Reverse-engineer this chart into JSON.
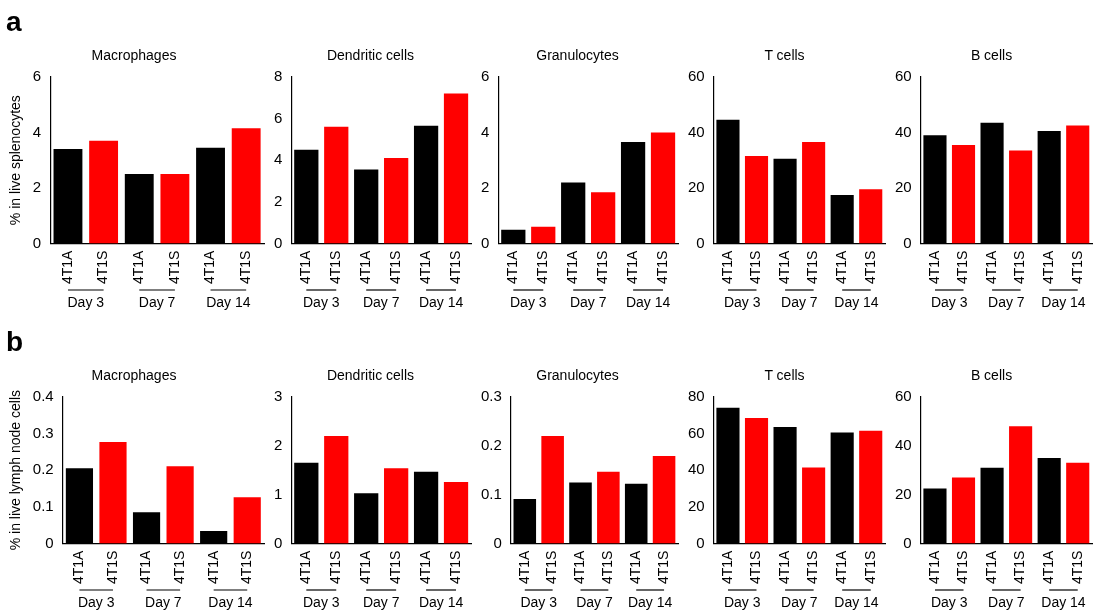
{
  "chart_data": [
    {
      "type": "bar",
      "title": "Macrophages",
      "ylabel": "% in live splenocytes",
      "categories": [
        "4T1A",
        "4T1S",
        "4T1A",
        "4T1S",
        "4T1A",
        "4T1S"
      ],
      "values": [
        3.4,
        3.7,
        2.5,
        2.5,
        3.45,
        4.15
      ],
      "colors": [
        "#000000",
        "#ff0000",
        "#000000",
        "#ff0000",
        "#000000",
        "#ff0000"
      ],
      "ylim": [
        0,
        6
      ],
      "yticks": [
        0,
        2,
        4,
        6
      ],
      "grid": false,
      "legend": false,
      "annotations": [
        "Day 3",
        "Day 7",
        "Day 14",
        "a"
      ]
    },
    {
      "type": "bar",
      "title": "Dendritic cells",
      "categories": [
        "4T1A",
        "4T1S",
        "4T1A",
        "4T1S",
        "4T1A",
        "4T1S"
      ],
      "values": [
        4.5,
        5.6,
        3.55,
        4.1,
        5.65,
        7.2
      ],
      "colors": [
        "#000000",
        "#ff0000",
        "#000000",
        "#ff0000",
        "#000000",
        "#ff0000"
      ],
      "ylim": [
        0,
        8
      ],
      "yticks": [
        0,
        2,
        4,
        6,
        8
      ],
      "grid": false,
      "legend": false,
      "annotations": [
        "Day 3",
        "Day 7",
        "Day 14"
      ]
    },
    {
      "type": "bar",
      "title": "Granulocytes",
      "categories": [
        "4T1A",
        "4T1S",
        "4T1A",
        "4T1S",
        "4T1A",
        "4T1S"
      ],
      "values": [
        0.5,
        0.6,
        2.2,
        1.85,
        3.65,
        4.0
      ],
      "colors": [
        "#000000",
        "#ff0000",
        "#000000",
        "#ff0000",
        "#000000",
        "#ff0000"
      ],
      "ylim": [
        0,
        6
      ],
      "yticks": [
        0,
        2,
        4,
        6
      ],
      "grid": false,
      "legend": false,
      "annotations": [
        "Day 3",
        "Day 7",
        "Day 14"
      ]
    },
    {
      "type": "bar",
      "title": "T cells",
      "categories": [
        "4T1A",
        "4T1S",
        "4T1A",
        "4T1S",
        "4T1A",
        "4T1S"
      ],
      "values": [
        44.5,
        31.5,
        30.5,
        36.5,
        17.5,
        19.5
      ],
      "colors": [
        "#000000",
        "#ff0000",
        "#000000",
        "#ff0000",
        "#000000",
        "#ff0000"
      ],
      "ylim": [
        0,
        60
      ],
      "yticks": [
        0,
        20,
        40,
        60
      ],
      "grid": false,
      "legend": false,
      "annotations": [
        "Day 3",
        "Day 7",
        "Day 14"
      ]
    },
    {
      "type": "bar",
      "title": "B cells",
      "categories": [
        "4T1A",
        "4T1S",
        "4T1A",
        "4T1S",
        "4T1A",
        "4T1S"
      ],
      "values": [
        39,
        35.5,
        43.5,
        33.5,
        40.5,
        42.5
      ],
      "colors": [
        "#000000",
        "#ff0000",
        "#000000",
        "#ff0000",
        "#000000",
        "#ff0000"
      ],
      "ylim": [
        0,
        60
      ],
      "yticks": [
        0,
        20,
        40,
        60
      ],
      "grid": false,
      "legend": false,
      "annotations": [
        "Day 3",
        "Day 7",
        "Day 14"
      ]
    },
    {
      "type": "bar",
      "title": "Macrophages",
      "ylabel": "% in live lymph node cells",
      "categories": [
        "4T1A",
        "4T1S",
        "4T1A",
        "4T1S",
        "4T1A",
        "4T1S"
      ],
      "values": [
        0.205,
        0.277,
        0.085,
        0.211,
        0.034,
        0.126
      ],
      "colors": [
        "#000000",
        "#ff0000",
        "#000000",
        "#ff0000",
        "#000000",
        "#ff0000"
      ],
      "ylim": [
        0,
        0.4
      ],
      "yticks": [
        0,
        0.1,
        0.2,
        0.3,
        0.4
      ],
      "grid": false,
      "legend": false,
      "annotations": [
        "Day 3",
        "Day 7",
        "Day 14",
        "b"
      ]
    },
    {
      "type": "bar",
      "title": "Dendritic cells",
      "categories": [
        "4T1A",
        "4T1S",
        "4T1A",
        "4T1S",
        "4T1A",
        "4T1S"
      ],
      "values": [
        1.65,
        2.2,
        1.03,
        1.54,
        1.47,
        1.26
      ],
      "colors": [
        "#000000",
        "#ff0000",
        "#000000",
        "#ff0000",
        "#000000",
        "#ff0000"
      ],
      "ylim": [
        0,
        3
      ],
      "yticks": [
        0,
        1,
        2,
        3
      ],
      "grid": false,
      "legend": false,
      "annotations": [
        "Day 3",
        "Day 7",
        "Day 14"
      ]
    },
    {
      "type": "bar",
      "title": "Granulocytes",
      "categories": [
        "4T1A",
        "4T1S",
        "4T1A",
        "4T1S",
        "4T1A",
        "4T1S"
      ],
      "values": [
        0.091,
        0.22,
        0.125,
        0.147,
        0.122,
        0.179
      ],
      "colors": [
        "#000000",
        "#ff0000",
        "#000000",
        "#ff0000",
        "#000000",
        "#ff0000"
      ],
      "ylim": [
        0,
        0.3
      ],
      "yticks": [
        0,
        0.1,
        0.2,
        0.3
      ],
      "grid": false,
      "legend": false,
      "annotations": [
        "Day 3",
        "Day 7",
        "Day 14"
      ]
    },
    {
      "type": "bar",
      "title": "T cells",
      "categories": [
        "4T1A",
        "4T1S",
        "4T1A",
        "4T1S",
        "4T1A",
        "4T1S"
      ],
      "values": [
        74,
        68.5,
        63.5,
        41.5,
        60.5,
        61.5
      ],
      "colors": [
        "#000000",
        "#ff0000",
        "#000000",
        "#ff0000",
        "#000000",
        "#ff0000"
      ],
      "ylim": [
        0,
        80
      ],
      "yticks": [
        0,
        20,
        40,
        60,
        80
      ],
      "grid": false,
      "legend": false,
      "annotations": [
        "Day 3",
        "Day 7",
        "Day 14"
      ]
    },
    {
      "type": "bar",
      "title": "B cells",
      "categories": [
        "4T1A",
        "4T1S",
        "4T1A",
        "4T1S",
        "4T1A",
        "4T1S"
      ],
      "values": [
        22.5,
        27,
        31,
        48,
        35,
        33
      ],
      "colors": [
        "#000000",
        "#ff0000",
        "#000000",
        "#ff0000",
        "#000000",
        "#ff0000"
      ],
      "ylim": [
        0,
        60
      ],
      "yticks": [
        0,
        20,
        40,
        60
      ],
      "grid": false,
      "legend": false,
      "annotations": [
        "Day 3",
        "Day 7",
        "Day 14"
      ]
    }
  ]
}
